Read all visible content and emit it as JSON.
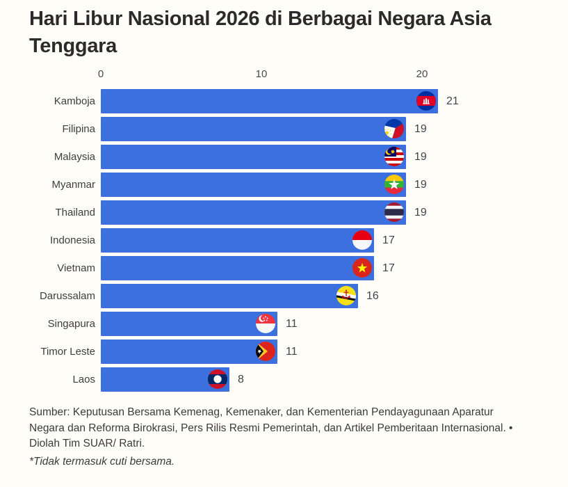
{
  "chart_data": {
    "type": "bar",
    "orientation": "horizontal",
    "title": "Hari Libur Nasional 2026 di Berbagai Negara Asia Tenggara",
    "categories": [
      "Kamboja",
      "Filipina",
      "Malaysia",
      "Myanmar",
      "Thailand",
      "Indonesia",
      "Vietnam",
      "Darussalam",
      "Singapura",
      "Timor Leste",
      "Laos"
    ],
    "values": [
      21,
      19,
      19,
      19,
      19,
      17,
      17,
      16,
      11,
      11,
      8
    ],
    "flag_icons": [
      "cambodia-flag-icon",
      "philippines-flag-icon",
      "malaysia-flag-icon",
      "myanmar-flag-icon",
      "thailand-flag-icon",
      "indonesia-flag-icon",
      "vietnam-flag-icon",
      "brunei-flag-icon",
      "singapore-flag-icon",
      "timor-leste-flag-icon",
      "laos-flag-icon"
    ],
    "xlabel": "",
    "ylabel": "",
    "xlim": [
      0,
      21
    ],
    "x_ticks": [
      0,
      10,
      20
    ],
    "grid": false,
    "legend": false,
    "bar_color": "#3B70DE",
    "value_labels": [
      "21",
      "19",
      "19",
      "19",
      "19",
      "17",
      "17",
      "16",
      "11",
      "11",
      "8"
    ]
  },
  "footer": {
    "source": "Sumber: Keputusan Bersama Kemenag, Kemenaker, dan Kementerian Pendayagunaan Aparatur Negara dan Reforma Birokrasi, Pers Rilis Resmi Pemerintah, dan Artikel Pemberitaan Internasional. • Diolah Tim SUAR/ Ratri.",
    "note": "*Tidak termasuk cuti bersama."
  }
}
